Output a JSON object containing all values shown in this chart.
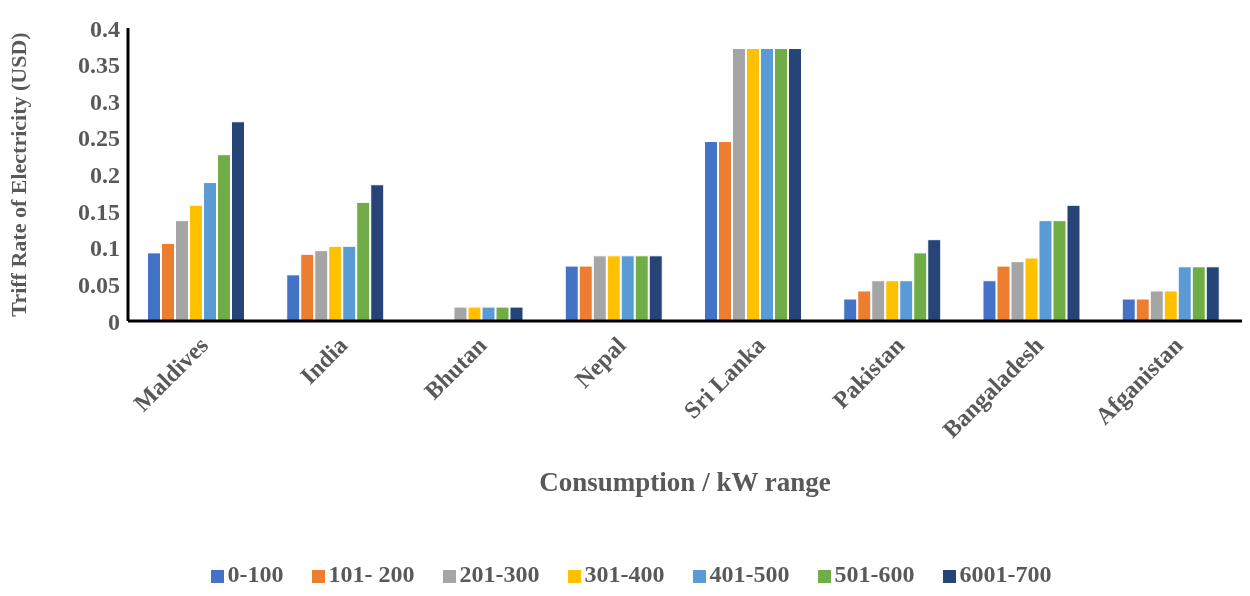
{
  "chart_data": {
    "type": "bar",
    "xlabel": "Consumption  / kW range",
    "ylabel": "Triff Rate of Electricity (USD)",
    "categories": [
      "Maldives",
      "India",
      "Bhutan",
      "Nepal",
      "Sri Lanka",
      "Pakistan",
      "Bangaladesh",
      "Afganistan"
    ],
    "series": [
      {
        "name": "0-100",
        "color": "#4472c4",
        "values": [
          0.093,
          0.063,
          0,
          0.075,
          0.245,
          0.03,
          0.055,
          0.03
        ]
      },
      {
        "name": "101- 200",
        "color": "#ed7d31",
        "values": [
          0.106,
          0.091,
          0,
          0.075,
          0.245,
          0.041,
          0.075,
          0.03
        ]
      },
      {
        "name": "201-300",
        "color": "#a5a5a5",
        "values": [
          0.137,
          0.096,
          0.019,
          0.089,
          0.372,
          0.055,
          0.081,
          0.041
        ]
      },
      {
        "name": "301-400",
        "color": "#ffc000",
        "values": [
          0.158,
          0.102,
          0.019,
          0.089,
          0.372,
          0.055,
          0.086,
          0.041
        ]
      },
      {
        "name": "401-500",
        "color": "#5b9bd5",
        "values": [
          0.189,
          0.102,
          0.019,
          0.089,
          0.372,
          0.055,
          0.137,
          0.074
        ]
      },
      {
        "name": "501-600",
        "color": "#70ad47",
        "values": [
          0.227,
          0.162,
          0.019,
          0.089,
          0.372,
          0.093,
          0.137,
          0.074
        ]
      },
      {
        "name": "6001-700",
        "color": "#264478",
        "values": [
          0.272,
          0.186,
          0.019,
          0.089,
          0.372,
          0.111,
          0.158,
          0.074
        ]
      }
    ],
    "ylim": [
      0,
      0.4
    ],
    "yticks": [
      0,
      0.05,
      0.1,
      0.15,
      0.2,
      0.25,
      0.3,
      0.35,
      0.4
    ],
    "grid": false,
    "legend": "bottom"
  }
}
